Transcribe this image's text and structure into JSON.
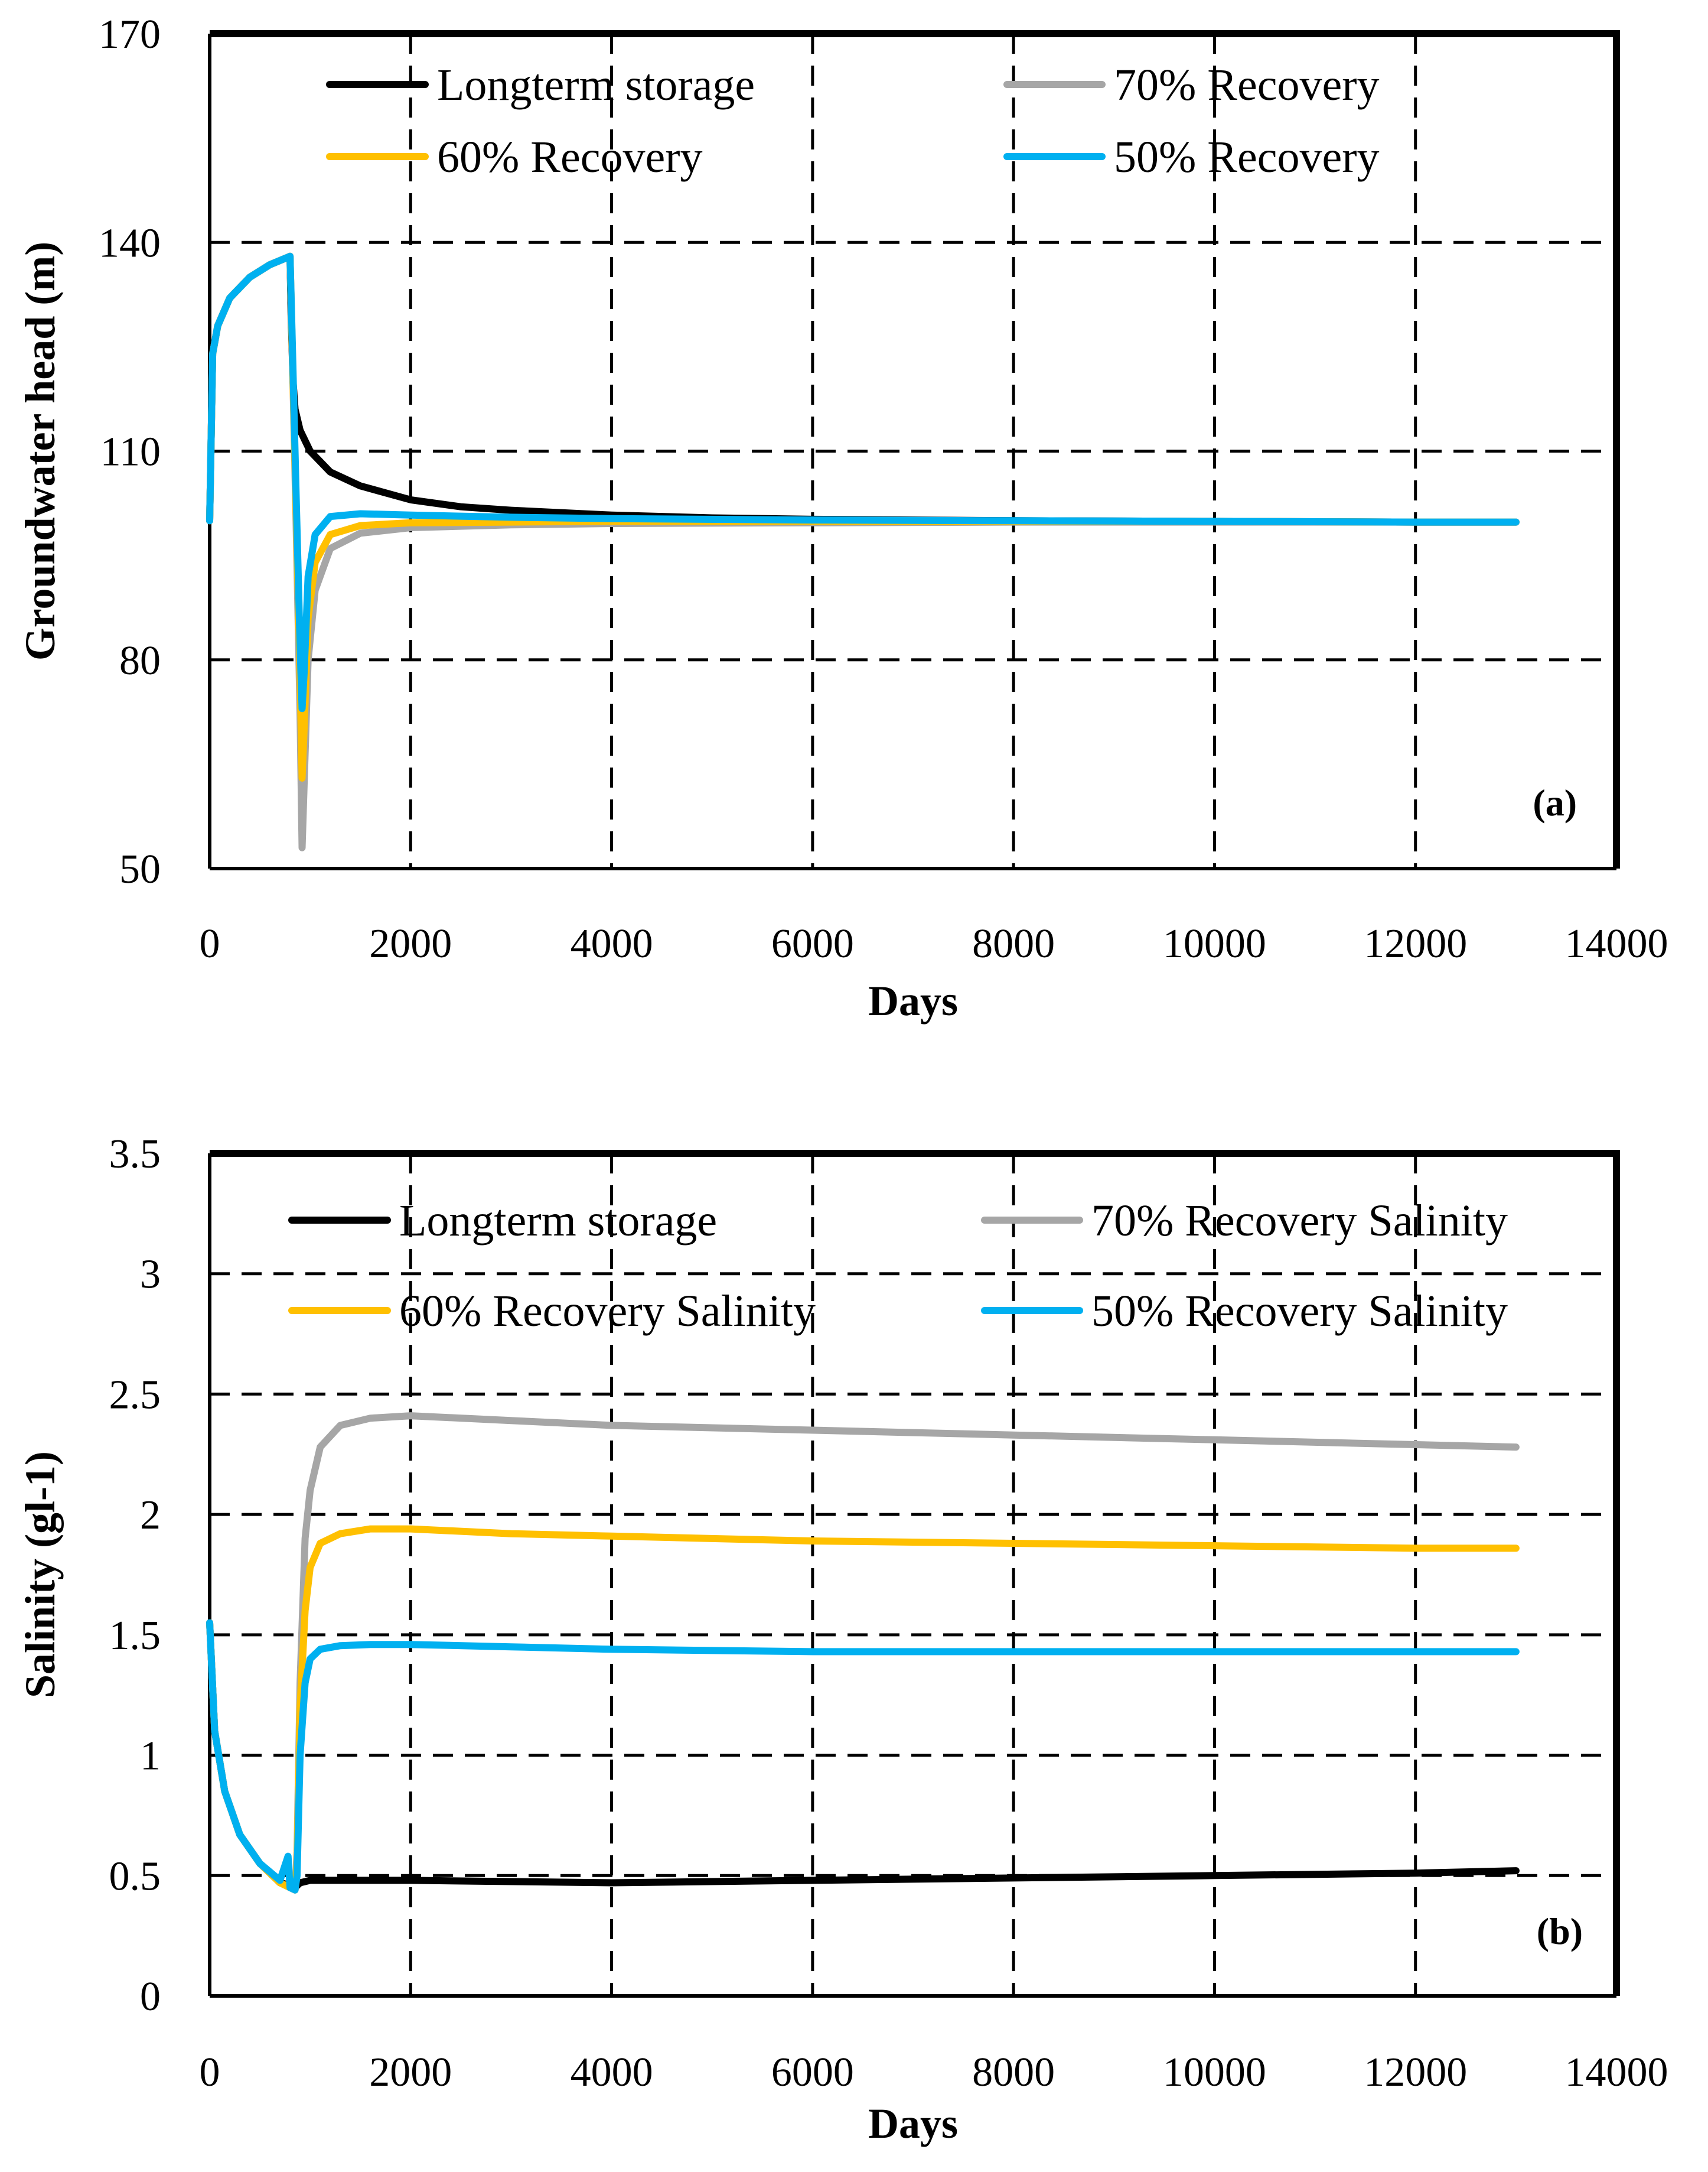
{
  "colors": {
    "longterm": "#000000",
    "rec70": "#a6a6a6",
    "rec60": "#ffc000",
    "rec50": "#00b0f0"
  },
  "chart_data": [
    {
      "type": "line",
      "panel_label": "(a)",
      "title": "",
      "xlabel": "Days",
      "ylabel": "Groundwater head (m)",
      "xlim": [
        0,
        14000
      ],
      "ylim": [
        50,
        170
      ],
      "x_ticks": [
        "0",
        "2000",
        "4000",
        "6000",
        "8000",
        "10000",
        "12000",
        "14000"
      ],
      "y_ticks": [
        "50",
        "80",
        "110",
        "140",
        "170"
      ],
      "x_tick_values": [
        0,
        2000,
        4000,
        6000,
        8000,
        10000,
        12000,
        14000
      ],
      "y_tick_values": [
        50,
        80,
        110,
        140,
        170
      ],
      "legend": "top",
      "series": [
        {
          "name": "Longterm storage",
          "color_key": "longterm",
          "x": [
            0,
            30,
            80,
            200,
            400,
            600,
            800,
            810,
            830,
            850,
            900,
            1000,
            1200,
            1500,
            2000,
            2500,
            3000,
            4000,
            5000,
            6000,
            8000,
            10000,
            12000,
            13000
          ],
          "y": [
            100,
            124,
            128,
            132,
            135,
            136.8,
            138,
            130,
            120,
            116,
            113,
            110,
            107,
            105,
            103,
            102,
            101.5,
            100.8,
            100.4,
            100.2,
            100,
            99.9,
            99.8,
            99.8
          ]
        },
        {
          "name": "70% Recovery",
          "color_key": "rec70",
          "x": [
            0,
            30,
            80,
            200,
            400,
            600,
            800,
            820,
            860,
            900,
            920,
            940,
            980,
            1050,
            1200,
            1500,
            2000,
            3000,
            4000,
            6000,
            8000,
            10000,
            12000,
            13000
          ],
          "y": [
            100,
            124,
            128,
            132,
            135,
            136.8,
            138,
            126,
            100,
            72,
            53,
            62,
            80,
            90,
            96,
            98.2,
            99,
            99.4,
            99.6,
            99.7,
            99.8,
            99.8,
            99.8,
            99.8
          ]
        },
        {
          "name": "60% Recovery",
          "color_key": "rec60",
          "x": [
            0,
            30,
            80,
            200,
            400,
            600,
            800,
            820,
            860,
            900,
            920,
            940,
            980,
            1050,
            1200,
            1500,
            2000,
            3000,
            4000,
            6000,
            8000,
            10000,
            12000,
            13000
          ],
          "y": [
            100,
            124,
            128,
            132,
            135,
            136.8,
            138,
            126,
            102,
            78,
            63,
            70,
            86,
            94,
            98,
            99.3,
            99.7,
            99.8,
            99.9,
            99.9,
            99.9,
            99.9,
            99.8,
            99.8
          ]
        },
        {
          "name": "50% Recovery",
          "color_key": "rec50",
          "x": [
            0,
            30,
            80,
            200,
            400,
            600,
            800,
            820,
            860,
            900,
            920,
            940,
            980,
            1050,
            1200,
            1500,
            2000,
            3000,
            4000,
            6000,
            8000,
            10000,
            12000,
            13000
          ],
          "y": [
            100,
            124,
            128,
            132,
            135,
            136.8,
            138,
            127,
            104,
            82,
            73,
            78,
            92,
            98,
            100.6,
            101,
            100.8,
            100.5,
            100.3,
            100.1,
            100,
            99.9,
            99.8,
            99.8
          ]
        }
      ]
    },
    {
      "type": "line",
      "panel_label": "(b)",
      "title": "",
      "xlabel": "Days",
      "ylabel": "Salinity (gl-1)",
      "xlim": [
        0,
        14000
      ],
      "ylim": [
        0,
        3.5
      ],
      "x_ticks": [
        "0",
        "2000",
        "4000",
        "6000",
        "8000",
        "10000",
        "12000",
        "14000"
      ],
      "y_ticks": [
        "0",
        "0.5",
        "1",
        "1.5",
        "2",
        "2.5",
        "3",
        "3.5"
      ],
      "x_tick_values": [
        0,
        2000,
        4000,
        6000,
        8000,
        10000,
        12000,
        14000
      ],
      "y_tick_values": [
        0,
        0.5,
        1,
        1.5,
        2,
        2.5,
        3,
        3.5
      ],
      "legend": "top",
      "series": [
        {
          "name": "Longterm storage",
          "color_key": "longterm",
          "x": [
            0,
            50,
            150,
            300,
            500,
            700,
            800,
            850,
            900,
            1000,
            2000,
            4000,
            6000,
            8000,
            10000,
            12000,
            13000
          ],
          "y": [
            1.55,
            1.1,
            0.85,
            0.67,
            0.55,
            0.47,
            0.46,
            0.45,
            0.47,
            0.48,
            0.48,
            0.47,
            0.48,
            0.49,
            0.5,
            0.51,
            0.52
          ]
        },
        {
          "name": "70% Recovery Salinity",
          "color_key": "rec70",
          "x": [
            0,
            50,
            150,
            300,
            500,
            700,
            800,
            850,
            870,
            900,
            950,
            1000,
            1100,
            1300,
            1600,
            2000,
            3000,
            4000,
            6000,
            8000,
            10000,
            12000,
            13000
          ],
          "y": [
            1.55,
            1.1,
            0.85,
            0.67,
            0.55,
            0.47,
            0.45,
            0.44,
            0.6,
            1.3,
            1.9,
            2.1,
            2.28,
            2.37,
            2.4,
            2.41,
            2.39,
            2.37,
            2.35,
            2.33,
            2.31,
            2.29,
            2.28
          ]
        },
        {
          "name": "60% Recovery Salinity",
          "color_key": "rec60",
          "x": [
            0,
            50,
            150,
            300,
            500,
            700,
            800,
            850,
            870,
            900,
            950,
            1000,
            1100,
            1300,
            1600,
            2000,
            3000,
            4000,
            6000,
            8000,
            10000,
            12000,
            13000
          ],
          "y": [
            1.55,
            1.1,
            0.85,
            0.67,
            0.55,
            0.47,
            0.45,
            0.44,
            0.55,
            1.2,
            1.6,
            1.78,
            1.88,
            1.92,
            1.94,
            1.94,
            1.92,
            1.91,
            1.89,
            1.88,
            1.87,
            1.86,
            1.86
          ]
        },
        {
          "name": "50% Recovery Salinity",
          "color_key": "rec50",
          "x": [
            0,
            50,
            150,
            300,
            500,
            700,
            780,
            800,
            850,
            870,
            900,
            950,
            1000,
            1100,
            1300,
            1600,
            2000,
            3000,
            4000,
            6000,
            8000,
            10000,
            12000,
            13000
          ],
          "y": [
            1.55,
            1.1,
            0.85,
            0.67,
            0.55,
            0.48,
            0.58,
            0.45,
            0.44,
            0.5,
            1.0,
            1.3,
            1.4,
            1.44,
            1.455,
            1.46,
            1.46,
            1.45,
            1.44,
            1.43,
            1.43,
            1.43,
            1.43,
            1.43
          ]
        }
      ]
    }
  ]
}
